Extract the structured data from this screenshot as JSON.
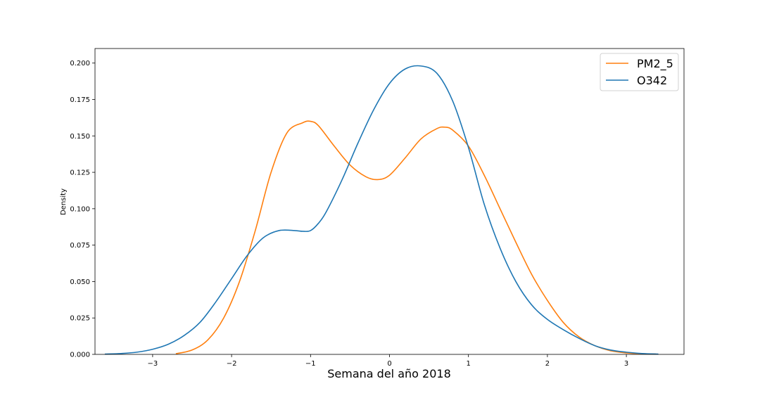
{
  "chart_data": {
    "type": "line",
    "title": "",
    "xlabel": "Semana del año 2018",
    "ylabel": "Density",
    "xlim": [
      -3.73,
      3.73
    ],
    "ylim": [
      0,
      0.21
    ],
    "x_ticks": [
      -3,
      -2,
      -1,
      0,
      1,
      2,
      3
    ],
    "x_tick_labels": [
      "−3",
      "−2",
      "−1",
      "0",
      "1",
      "2",
      "3"
    ],
    "y_ticks": [
      0.0,
      0.025,
      0.05,
      0.075,
      0.1,
      0.125,
      0.15,
      0.175,
      0.2
    ],
    "y_tick_labels": [
      "0.000",
      "0.025",
      "0.050",
      "0.075",
      "0.100",
      "0.125",
      "0.150",
      "0.175",
      "0.200"
    ],
    "grid": false,
    "legend": {
      "position": "top-right",
      "font_size": "large"
    },
    "series": [
      {
        "name": "PM2_5",
        "color": "#ff7f0e",
        "x": [
          -2.7,
          -2.5,
          -2.3,
          -2.1,
          -1.9,
          -1.7,
          -1.5,
          -1.3,
          -1.1,
          -1.0,
          -0.9,
          -0.7,
          -0.5,
          -0.3,
          -0.15,
          0.0,
          0.2,
          0.4,
          0.6,
          0.7,
          0.8,
          1.0,
          1.2,
          1.4,
          1.6,
          1.8,
          2.0,
          2.2,
          2.4,
          2.6,
          2.8,
          3.0,
          3.2,
          3.37
        ],
        "y": [
          0.0005,
          0.003,
          0.01,
          0.025,
          0.05,
          0.085,
          0.125,
          0.152,
          0.159,
          0.16,
          0.157,
          0.143,
          0.13,
          0.122,
          0.12,
          0.123,
          0.135,
          0.148,
          0.155,
          0.156,
          0.154,
          0.143,
          0.123,
          0.1,
          0.077,
          0.055,
          0.037,
          0.022,
          0.012,
          0.006,
          0.0025,
          0.001,
          0.0004,
          0.0002
        ]
      },
      {
        "name": "O342",
        "color": "#1f77b4",
        "x": [
          -3.6,
          -3.4,
          -3.2,
          -3.0,
          -2.8,
          -2.6,
          -2.4,
          -2.2,
          -2.0,
          -1.8,
          -1.6,
          -1.4,
          -1.2,
          -1.1,
          -1.0,
          -0.9,
          -0.8,
          -0.6,
          -0.4,
          -0.2,
          0.0,
          0.2,
          0.4,
          0.6,
          0.8,
          1.0,
          1.2,
          1.4,
          1.6,
          1.8,
          2.0,
          2.2,
          2.4,
          2.6,
          2.8,
          3.0,
          3.2,
          3.4
        ],
        "y": [
          0.0002,
          0.0006,
          0.0015,
          0.0035,
          0.007,
          0.013,
          0.022,
          0.036,
          0.052,
          0.068,
          0.08,
          0.085,
          0.085,
          0.0845,
          0.085,
          0.09,
          0.098,
          0.12,
          0.145,
          0.168,
          0.186,
          0.196,
          0.198,
          0.193,
          0.174,
          0.142,
          0.103,
          0.073,
          0.05,
          0.034,
          0.024,
          0.017,
          0.011,
          0.006,
          0.003,
          0.0015,
          0.0006,
          0.0002
        ]
      }
    ]
  }
}
